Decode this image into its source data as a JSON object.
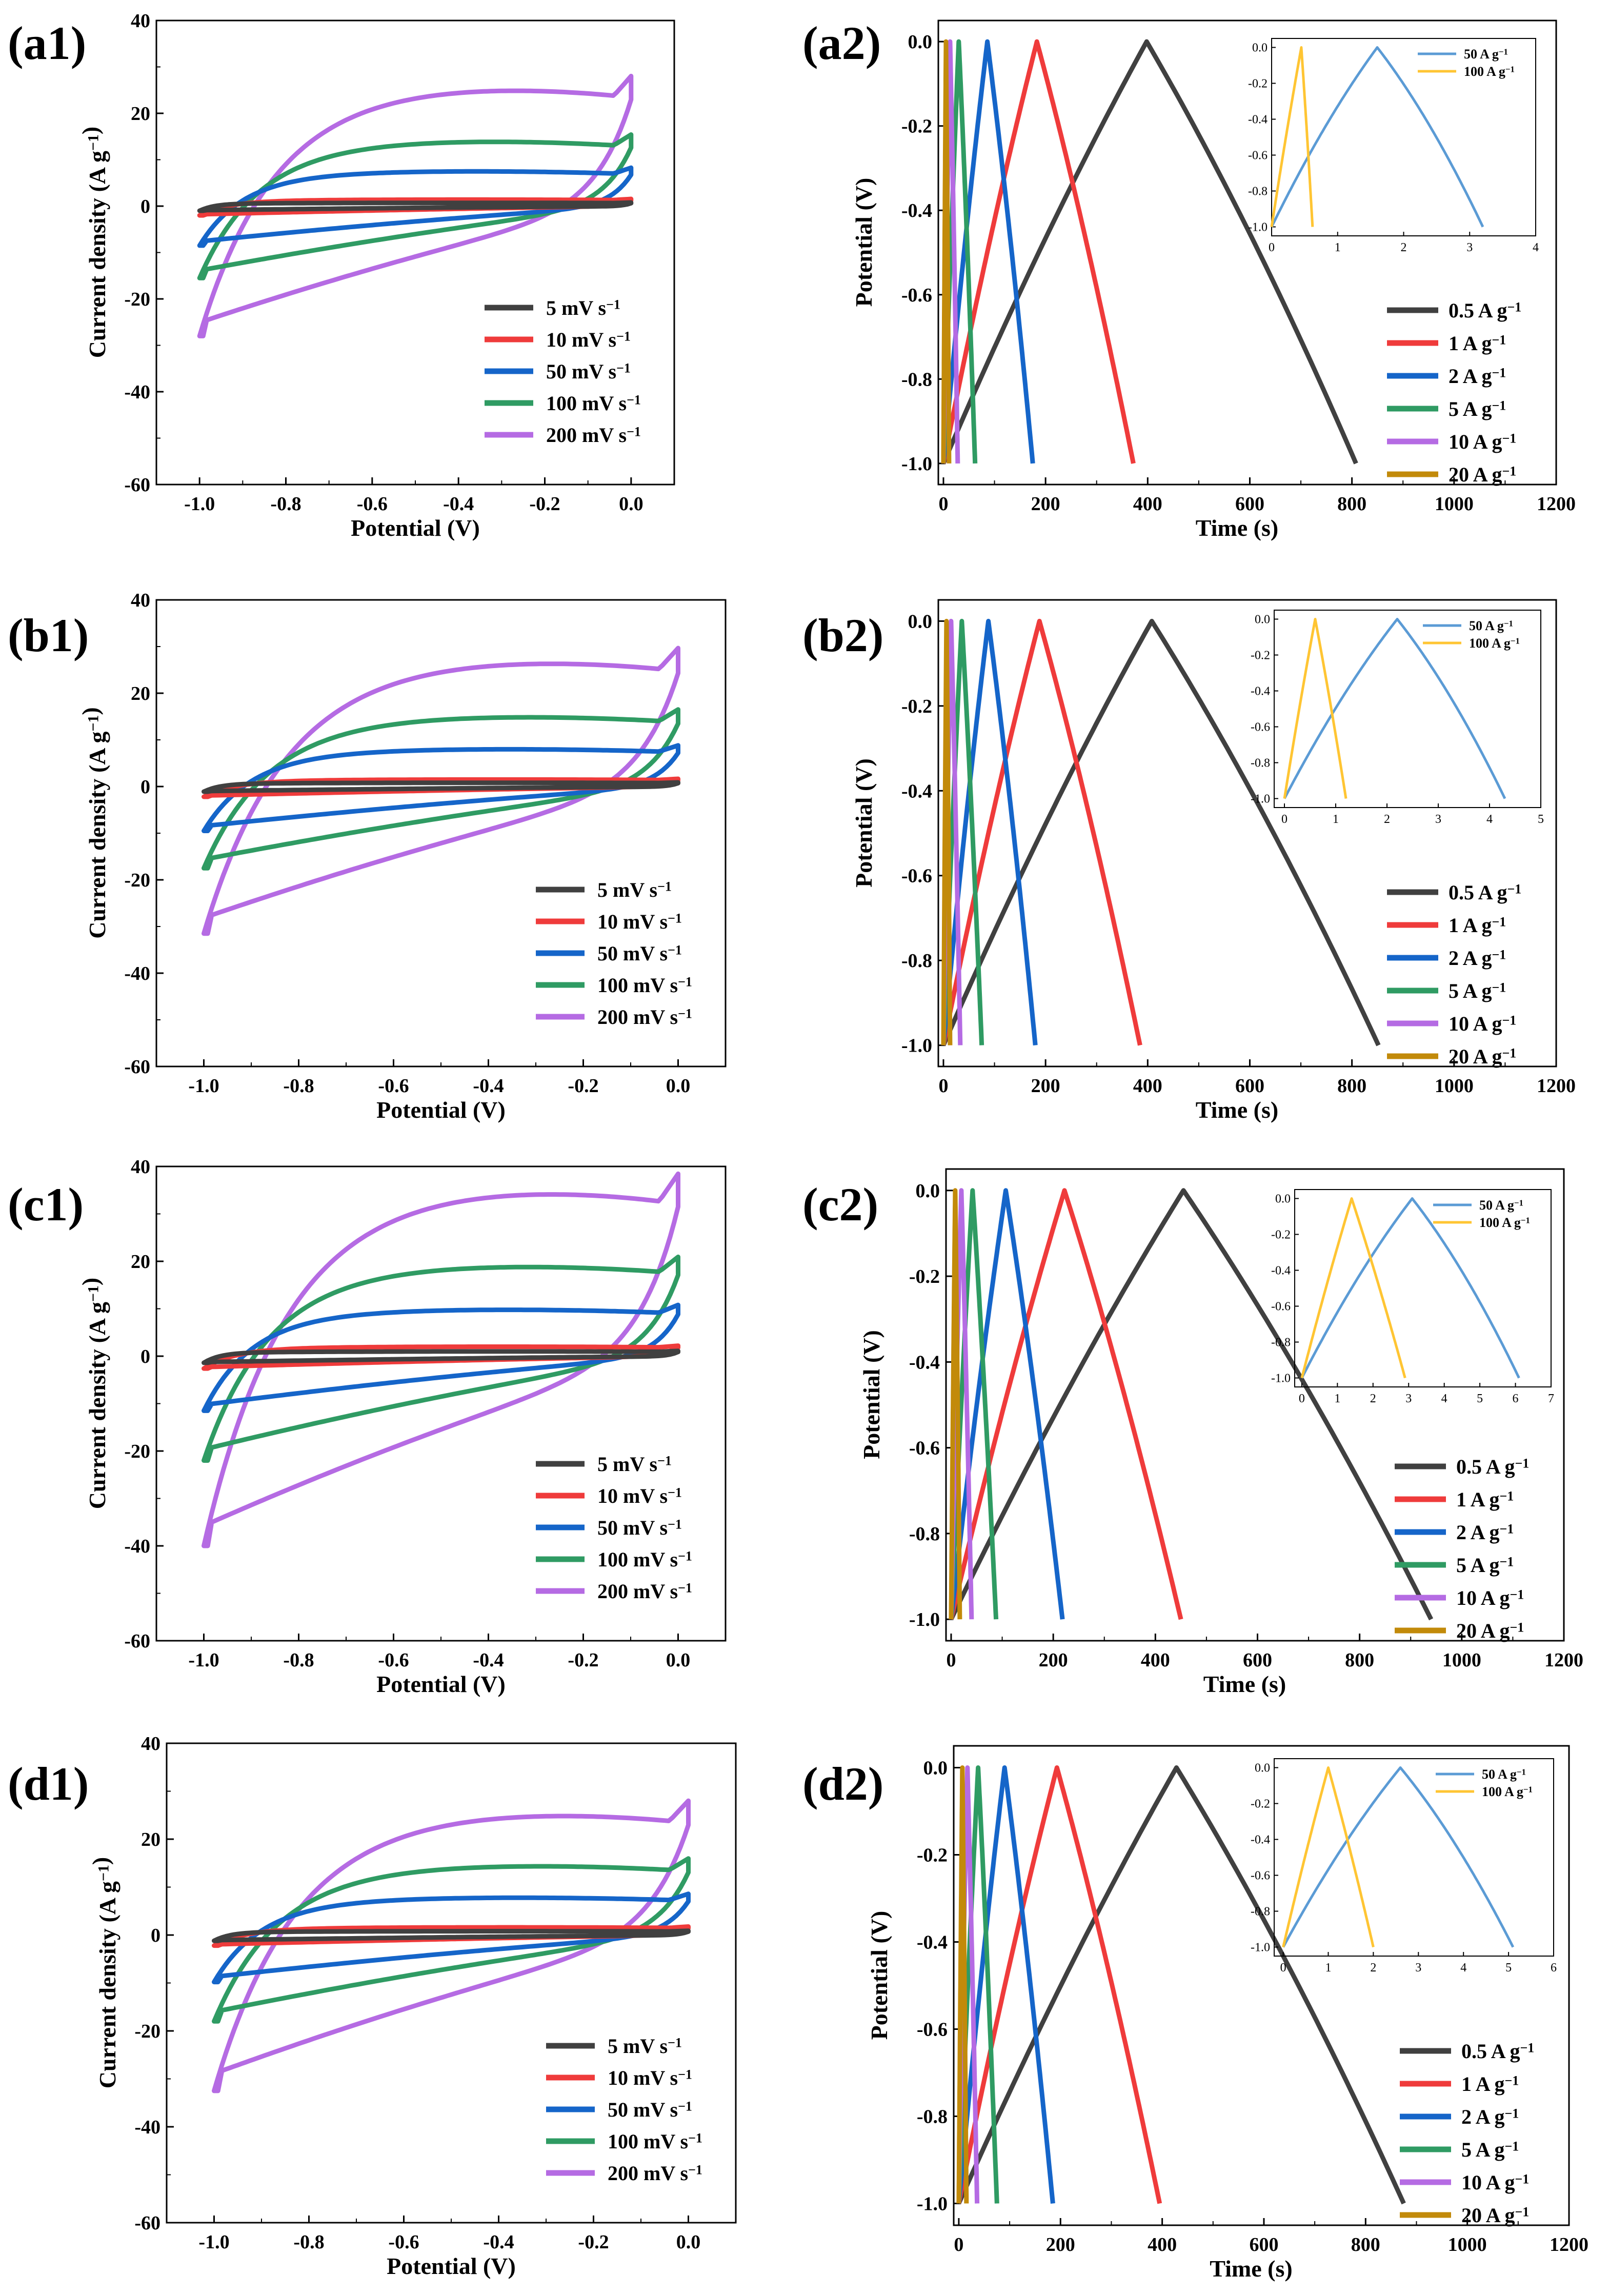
{
  "colors": {
    "s5": "#404040",
    "s10": "#ef3b3b",
    "s50": "#1565c9",
    "s100": "#2f9b63",
    "s200": "#b56be3",
    "g05": "#404040",
    "g1": "#ef3b3b",
    "g2": "#1565c9",
    "g5": "#2f9b63",
    "g10": "#b56be3",
    "g20": "#c28a0a",
    "i50": "#5b9bd5",
    "i100": "#ffc533"
  },
  "chart_data": [
    {
      "id": "a1",
      "panel_label": "(a1)",
      "type": "line",
      "xlabel": "Potential (V)",
      "ylabel": "Current density (A g−1)",
      "xlim": [
        -1.1,
        0.1
      ],
      "ylim": [
        -60,
        40
      ],
      "xticks": [
        "-1.0",
        "-0.8",
        "-0.6",
        "-0.4",
        "-0.2",
        "0.0"
      ],
      "yticks": [
        "40",
        "20",
        "0",
        "-20",
        "-40",
        "-60"
      ],
      "legend": [
        "5  mV s−1",
        "10  mV s−1",
        "50  mV s−1",
        "100 mV s−1",
        "200 mV s−1"
      ],
      "series": [
        {
          "name": "5 mV s-1",
          "color_key": "s5",
          "anodic_peak": 0.7,
          "cathodic_min": -1.0
        },
        {
          "name": "10 mV s-1",
          "color_key": "s10",
          "anodic_peak": 1.4,
          "cathodic_min": -2.0
        },
        {
          "name": "50 mV s-1",
          "color_key": "s50",
          "anodic_peak": 7.5,
          "cathodic_min": -8.5
        },
        {
          "name": "100 mV s-1",
          "color_key": "s100",
          "anodic_peak": 14,
          "cathodic_min": -15.5
        },
        {
          "name": "200 mV s-1",
          "color_key": "s200",
          "anodic_peak": 25.5,
          "cathodic_min": -28
        }
      ]
    },
    {
      "id": "b1",
      "panel_label": "(b1)",
      "type": "line",
      "xlabel": "Potential (V)",
      "ylabel": "Current density (A g−1)",
      "xlim": [
        -1.1,
        0.1
      ],
      "ylim": [
        -60,
        40
      ],
      "xticks": [
        "-1.0",
        "-0.8",
        "-0.6",
        "-0.4",
        "-0.2",
        "0.0"
      ],
      "yticks": [
        "40",
        "20",
        "0",
        "-20",
        "-40",
        "-60"
      ],
      "legend": [
        "5  mV s−1",
        "10  mV s−1",
        "50  mV s−1",
        "100 mV s−1",
        "200 mV s−1"
      ],
      "series": [
        {
          "name": "5 mV s-1",
          "color_key": "s5",
          "anodic_peak": 0.8,
          "cathodic_min": -1.1
        },
        {
          "name": "10 mV s-1",
          "color_key": "s10",
          "anodic_peak": 1.5,
          "cathodic_min": -2.2
        },
        {
          "name": "50 mV s-1",
          "color_key": "s50",
          "anodic_peak": 8,
          "cathodic_min": -9.5
        },
        {
          "name": "100 mV s-1",
          "color_key": "s100",
          "anodic_peak": 15,
          "cathodic_min": -17.5
        },
        {
          "name": "200 mV s-1",
          "color_key": "s200",
          "anodic_peak": 27,
          "cathodic_min": -31.5
        }
      ]
    },
    {
      "id": "c1",
      "panel_label": "(c1)",
      "type": "line",
      "xlabel": "Potential (V)",
      "ylabel": "Current density (A g−1)",
      "xlim": [
        -1.1,
        0.1
      ],
      "ylim": [
        -60,
        40
      ],
      "xticks": [
        "-1.0",
        "-0.8",
        "-0.6",
        "-0.4",
        "-0.2",
        "0.0"
      ],
      "yticks": [
        "40",
        "20",
        "0",
        "-20",
        "-40",
        "-60"
      ],
      "legend": [
        "5  mV s−1",
        "10  mV s−1",
        "50  mV s−1",
        "100 mV s−1",
        "200 mV s−1"
      ],
      "series": [
        {
          "name": "5 mV s-1",
          "color_key": "s5",
          "anodic_peak": 1.0,
          "cathodic_min": -1.4
        },
        {
          "name": "10 mV s-1",
          "color_key": "s10",
          "anodic_peak": 2.0,
          "cathodic_min": -2.6
        },
        {
          "name": "50 mV s-1",
          "color_key": "s50",
          "anodic_peak": 9.8,
          "cathodic_min": -11.5
        },
        {
          "name": "100 mV s-1",
          "color_key": "s100",
          "anodic_peak": 19,
          "cathodic_min": -22
        },
        {
          "name": "200 mV s-1",
          "color_key": "s200",
          "anodic_peak": 35,
          "cathodic_min": -40
        }
      ]
    },
    {
      "id": "d1",
      "panel_label": "(d1)",
      "type": "line",
      "xlabel": "Potential (V)",
      "ylabel": "Current density (A g−1)",
      "xlim": [
        -1.1,
        0.1
      ],
      "ylim": [
        -60,
        40
      ],
      "xticks": [
        "-1.0",
        "-0.8",
        "-0.6",
        "-0.4",
        "-0.2",
        "0.0"
      ],
      "yticks": [
        "40",
        "20",
        "0",
        "-20",
        "-40",
        "-60"
      ],
      "legend": [
        "5  mV s−1",
        "10  mV s−1",
        "50  mV s−1",
        "100 mV s−1",
        "200 mV s−1"
      ],
      "series": [
        {
          "name": "5 mV s-1",
          "color_key": "s5",
          "anodic_peak": 0.8,
          "cathodic_min": -1.2
        },
        {
          "name": "10 mV s-1",
          "color_key": "s10",
          "anodic_peak": 1.6,
          "cathodic_min": -2.2
        },
        {
          "name": "50 mV s-1",
          "color_key": "s50",
          "anodic_peak": 7.8,
          "cathodic_min": -9.8
        },
        {
          "name": "100 mV s-1",
          "color_key": "s100",
          "anodic_peak": 14.5,
          "cathodic_min": -18
        },
        {
          "name": "200 mV s-1",
          "color_key": "s200",
          "anodic_peak": 25.5,
          "cathodic_min": -32.5
        }
      ]
    },
    {
      "id": "a2",
      "panel_label": "(a2)",
      "type": "line",
      "xlabel": "Time (s)",
      "ylabel": "Potential (V)",
      "xlim": [
        -10,
        1200
      ],
      "ylim": [
        -1.05,
        0.05
      ],
      "xticks": [
        "0",
        "200",
        "400",
        "600",
        "800",
        "1000",
        "1200"
      ],
      "yticks": [
        "0.0",
        "-0.2",
        "-0.4",
        "-0.6",
        "-0.8",
        "-1.0"
      ],
      "legend": [
        "0.5 A g−1",
        "1 A g−1",
        "2 A g−1",
        "5 A g−1",
        "10 A g−1",
        "20 A g−1"
      ],
      "series": [
        {
          "name": "0.5 A g-1",
          "color_key": "g05",
          "charge_end_s": 398,
          "discharge_end_s": 808
        },
        {
          "name": "1 A g-1",
          "color_key": "g1",
          "charge_end_s": 183,
          "discharge_end_s": 372
        },
        {
          "name": "2 A g-1",
          "color_key": "g2",
          "charge_end_s": 86,
          "discharge_end_s": 175
        },
        {
          "name": "5 A g-1",
          "color_key": "g5",
          "charge_end_s": 30,
          "discharge_end_s": 62
        },
        {
          "name": "10 A g-1",
          "color_key": "g10",
          "charge_end_s": 13,
          "discharge_end_s": 28
        },
        {
          "name": "20 A g-1",
          "color_key": "g20",
          "charge_end_s": 5,
          "discharge_end_s": 11
        }
      ],
      "inset": {
        "xlim": [
          0,
          4
        ],
        "ylim": [
          -1.05,
          0.05
        ],
        "xticks": [
          "0",
          "1",
          "2",
          "3",
          "4"
        ],
        "yticks": [
          "0.0",
          "-0.2",
          "-0.4",
          "-0.6",
          "-0.8",
          "-1.0"
        ],
        "legend": [
          "50 A g−1",
          "100 A g−1"
        ],
        "series": [
          {
            "name": "50 A g-1",
            "color_key": "i50",
            "charge_end_s": 1.6,
            "discharge_end_s": 3.2
          },
          {
            "name": "100 A g-1",
            "color_key": "i100",
            "charge_end_s": 0.45,
            "discharge_end_s": 0.62
          }
        ]
      }
    },
    {
      "id": "b2",
      "panel_label": "(b2)",
      "type": "line",
      "xlabel": "Time (s)",
      "ylabel": "Potential (V)",
      "xlim": [
        -10,
        1200
      ],
      "ylim": [
        -1.05,
        0.05
      ],
      "xticks": [
        "0",
        "200",
        "400",
        "600",
        "800",
        "1000",
        "1200"
      ],
      "yticks": [
        "0.0",
        "-0.2",
        "-0.4",
        "-0.6",
        "-0.8",
        "-1.0"
      ],
      "legend": [
        "0.5 A g−1",
        "1 A g−1",
        "2 A g−1",
        "5 A g−1",
        "10 A g−1",
        "20 A g−1"
      ],
      "series": [
        {
          "name": "0.5 A g-1",
          "color_key": "g05",
          "charge_end_s": 408,
          "discharge_end_s": 852
        },
        {
          "name": "1 A g-1",
          "color_key": "g1",
          "charge_end_s": 188,
          "discharge_end_s": 385
        },
        {
          "name": "2 A g-1",
          "color_key": "g2",
          "charge_end_s": 88,
          "discharge_end_s": 180
        },
        {
          "name": "5 A g-1",
          "color_key": "g5",
          "charge_end_s": 36,
          "discharge_end_s": 75
        },
        {
          "name": "10 A g-1",
          "color_key": "g10",
          "charge_end_s": 15,
          "discharge_end_s": 33
        },
        {
          "name": "20 A g-1",
          "color_key": "g20",
          "charge_end_s": 6,
          "discharge_end_s": 13
        }
      ],
      "inset": {
        "xlim": [
          -0.2,
          5
        ],
        "ylim": [
          -1.05,
          0.05
        ],
        "xticks": [
          "0",
          "1",
          "2",
          "3",
          "4",
          "5"
        ],
        "yticks": [
          "0.0",
          "-0.2",
          "-0.4",
          "-0.6",
          "-0.8",
          "-1.0"
        ],
        "legend": [
          "50 A g−1",
          "100 A g−1"
        ],
        "series": [
          {
            "name": "50 A g-1",
            "color_key": "i50",
            "charge_end_s": 2.2,
            "discharge_end_s": 4.3
          },
          {
            "name": "100 A g-1",
            "color_key": "i100",
            "charge_end_s": 0.6,
            "discharge_end_s": 1.2
          }
        ]
      }
    },
    {
      "id": "c2",
      "panel_label": "(c2)",
      "type": "line",
      "xlabel": "Time (s)",
      "ylabel": "Potential (V)",
      "xlim": [
        -10,
        1200
      ],
      "ylim": [
        -1.05,
        0.05
      ],
      "xticks": [
        "0",
        "200",
        "400",
        "600",
        "800",
        "1000",
        "1200"
      ],
      "yticks": [
        "0.0",
        "-0.2",
        "-0.4",
        "-0.6",
        "-0.8",
        "-1.0"
      ],
      "legend": [
        "0.5 A g−1",
        "1 A g−1",
        "2 A g−1",
        "5 A g−1",
        "10 A g−1",
        "20 A g−1"
      ],
      "series": [
        {
          "name": "0.5 A g-1",
          "color_key": "g05",
          "charge_end_s": 455,
          "discharge_end_s": 940
        },
        {
          "name": "1 A g-1",
          "color_key": "g1",
          "charge_end_s": 222,
          "discharge_end_s": 450
        },
        {
          "name": "2 A g-1",
          "color_key": "g2",
          "charge_end_s": 107,
          "discharge_end_s": 218
        },
        {
          "name": "5 A g-1",
          "color_key": "g5",
          "charge_end_s": 42,
          "discharge_end_s": 88
        },
        {
          "name": "10 A g-1",
          "color_key": "g10",
          "charge_end_s": 20,
          "discharge_end_s": 40
        },
        {
          "name": "20 A g-1",
          "color_key": "g20",
          "charge_end_s": 8,
          "discharge_end_s": 17
        }
      ],
      "inset": {
        "xlim": [
          -0.2,
          7
        ],
        "ylim": [
          -1.05,
          0.05
        ],
        "xticks": [
          "0",
          "1",
          "2",
          "3",
          "4",
          "5",
          "6",
          "7"
        ],
        "yticks": [
          "0.0",
          "-0.2",
          "-0.4",
          "-0.6",
          "-0.8",
          "-1.0"
        ],
        "legend": [
          "50 A g−1",
          "100 A g−1"
        ],
        "series": [
          {
            "name": "50 A g-1",
            "color_key": "i50",
            "charge_end_s": 3.1,
            "discharge_end_s": 6.1
          },
          {
            "name": "100 A g-1",
            "color_key": "i100",
            "charge_end_s": 1.4,
            "discharge_end_s": 2.9
          }
        ]
      }
    },
    {
      "id": "d2",
      "panel_label": "(d2)",
      "type": "line",
      "xlabel": "Time (s)",
      "ylabel": "Potential (V)",
      "xlim": [
        -10,
        1200
      ],
      "ylim": [
        -1.05,
        0.05
      ],
      "xticks": [
        "0",
        "200",
        "400",
        "600",
        "800",
        "1000",
        "1200"
      ],
      "yticks": [
        "0.0",
        "-0.2",
        "-0.4",
        "-0.6",
        "-0.8",
        "-1.0"
      ],
      "legend": [
        "0.5 A g−1",
        "1 A g−1",
        "2 A g−1",
        "5 A g−1",
        "10 A g−1",
        "20 A g−1"
      ],
      "series": [
        {
          "name": "0.5 A g-1",
          "color_key": "g05",
          "charge_end_s": 428,
          "discharge_end_s": 875
        },
        {
          "name": "1 A g-1",
          "color_key": "g1",
          "charge_end_s": 193,
          "discharge_end_s": 395
        },
        {
          "name": "2 A g-1",
          "color_key": "g2",
          "charge_end_s": 90,
          "discharge_end_s": 185
        },
        {
          "name": "5 A g-1",
          "color_key": "g5",
          "charge_end_s": 38,
          "discharge_end_s": 75
        },
        {
          "name": "10 A g-1",
          "color_key": "g10",
          "charge_end_s": 17,
          "discharge_end_s": 36
        },
        {
          "name": "20 A g-1",
          "color_key": "g20",
          "charge_end_s": 7,
          "discharge_end_s": 15
        }
      ],
      "inset": {
        "xlim": [
          -0.2,
          6
        ],
        "ylim": [
          -1.05,
          0.05
        ],
        "xticks": [
          "0",
          "1",
          "2",
          "3",
          "4",
          "5",
          "6"
        ],
        "yticks": [
          "0.0",
          "-0.2",
          "-0.4",
          "-0.6",
          "-0.8",
          "-1.0"
        ],
        "legend": [
          "50 A g−1",
          "100 A g−1"
        ],
        "series": [
          {
            "name": "50 A g-1",
            "color_key": "i50",
            "charge_end_s": 2.6,
            "discharge_end_s": 5.1
          },
          {
            "name": "100 A g-1",
            "color_key": "i100",
            "charge_end_s": 1.0,
            "discharge_end_s": 2.0
          }
        ]
      }
    }
  ]
}
